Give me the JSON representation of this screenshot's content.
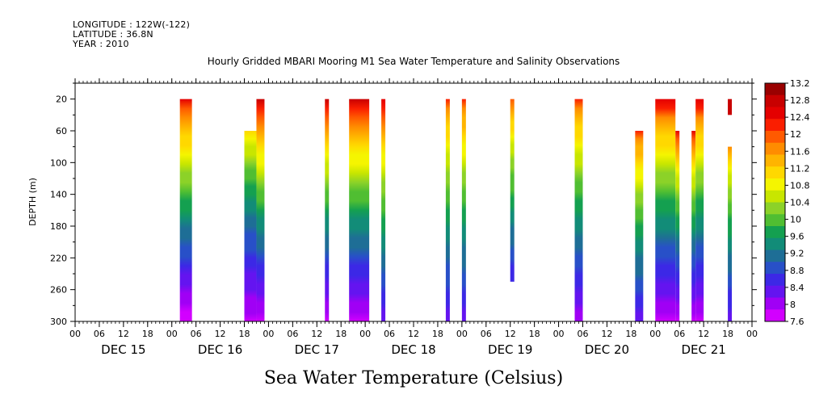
{
  "header": {
    "longitude": "LONGITUDE : 122W(-122)",
    "latitude": "LATITUDE : 36.8N",
    "year": "YEAR : 2010"
  },
  "chart_data": {
    "type": "heatmap",
    "title": "Hourly Gridded MBARI Mooring M1 Sea Water Temperature and Salinity Observations",
    "bottom_title": "Sea Water Temperature (Celsius)",
    "ylabel": "DEPTH (m)",
    "ylim": [
      300,
      0
    ],
    "y_ticks": [
      20,
      60,
      100,
      140,
      180,
      220,
      260,
      300
    ],
    "x_hour_labels": [
      "00",
      "06",
      "12",
      "18",
      "00",
      "06",
      "12",
      "18",
      "00",
      "06",
      "12",
      "18",
      "00",
      "06",
      "12",
      "18",
      "00",
      "06",
      "12",
      "18",
      "00",
      "06",
      "12",
      "18",
      "00",
      "06",
      "12",
      "18",
      "00"
    ],
    "x_day_labels": [
      "DEC 15",
      "DEC 16",
      "DEC 17",
      "DEC 18",
      "DEC 19",
      "DEC 20",
      "DEC 21"
    ],
    "x_start_hour": 0,
    "x_end_hour": 168,
    "colorbar": {
      "labels": [
        "13.2",
        "12.8",
        "12.4",
        "12",
        "11.6",
        "11.2",
        "10.8",
        "10.4",
        "10",
        "9.6",
        "9.2",
        "8.8",
        "8.4",
        "8",
        "7.6"
      ],
      "colors": [
        "#9a0000",
        "#c80000",
        "#e40000",
        "#fa1e00",
        "#ff5a00",
        "#ff8c00",
        "#ffb400",
        "#ffd800",
        "#f5f500",
        "#c8e600",
        "#8cd228",
        "#50be32",
        "#14a050",
        "#128c78",
        "#1e6e96",
        "#2850c8",
        "#3c28e6",
        "#6414f0",
        "#a000f5",
        "#d200ff"
      ],
      "range": [
        7.6,
        13.2
      ]
    },
    "series": [
      {
        "name": "",
        "start": 26,
        "end": 29,
        "top": 20,
        "bottom": 300,
        "t_top": 12.6,
        "t_bottom": 7.7
      },
      {
        "name": "",
        "start": 42,
        "end": 45,
        "top": 60,
        "bottom": 300,
        "t_top": 11.2,
        "t_bottom": 7.8
      },
      {
        "name": "",
        "start": 45,
        "end": 47,
        "top": 20,
        "bottom": 300,
        "t_top": 12.8,
        "t_bottom": 7.8
      },
      {
        "name": "",
        "start": 62,
        "end": 63,
        "top": 20,
        "bottom": 300,
        "t_top": 12.7,
        "t_bottom": 7.8
      },
      {
        "name": "",
        "start": 68,
        "end": 73,
        "top": 20,
        "bottom": 300,
        "t_top": 12.8,
        "t_bottom": 7.8
      },
      {
        "name": "",
        "start": 76,
        "end": 77,
        "top": 20,
        "bottom": 300,
        "t_top": 12.6,
        "t_bottom": 8.2
      },
      {
        "name": "",
        "start": 92,
        "end": 93,
        "top": 20,
        "bottom": 300,
        "t_top": 12.1,
        "t_bottom": 8.3
      },
      {
        "name": "",
        "start": 96,
        "end": 97,
        "top": 20,
        "bottom": 300,
        "t_top": 12.2,
        "t_bottom": 8.3
      },
      {
        "name": "",
        "start": 108,
        "end": 109,
        "top": 20,
        "bottom": 250,
        "t_top": 12.0,
        "t_bottom": 8.5
      },
      {
        "name": "",
        "start": 124,
        "end": 126,
        "top": 20,
        "bottom": 300,
        "t_top": 12.2,
        "t_bottom": 8.0
      },
      {
        "name": "",
        "start": 139,
        "end": 141,
        "top": 60,
        "bottom": 300,
        "t_top": 12.2,
        "t_bottom": 8.3
      },
      {
        "name": "",
        "start": 144,
        "end": 149,
        "top": 20,
        "bottom": 300,
        "t_top": 12.6,
        "t_bottom": 7.8
      },
      {
        "name": "",
        "start": 149,
        "end": 150,
        "top": 60,
        "bottom": 300,
        "t_top": 12.4,
        "t_bottom": 7.8
      },
      {
        "name": "",
        "start": 153,
        "end": 154,
        "top": 60,
        "bottom": 300,
        "t_top": 12.4,
        "t_bottom": 7.8
      },
      {
        "name": "",
        "start": 154,
        "end": 156,
        "top": 20,
        "bottom": 300,
        "t_top": 12.6,
        "t_bottom": 7.8
      },
      {
        "name": "",
        "start": 162,
        "end": 163,
        "top": 20,
        "bottom": 40,
        "t_top": 12.8,
        "t_bottom": 12.7
      },
      {
        "name": "",
        "start": 162,
        "end": 163,
        "top": 80,
        "bottom": 300,
        "t_top": 11.6,
        "t_bottom": 8.3
      }
    ]
  }
}
